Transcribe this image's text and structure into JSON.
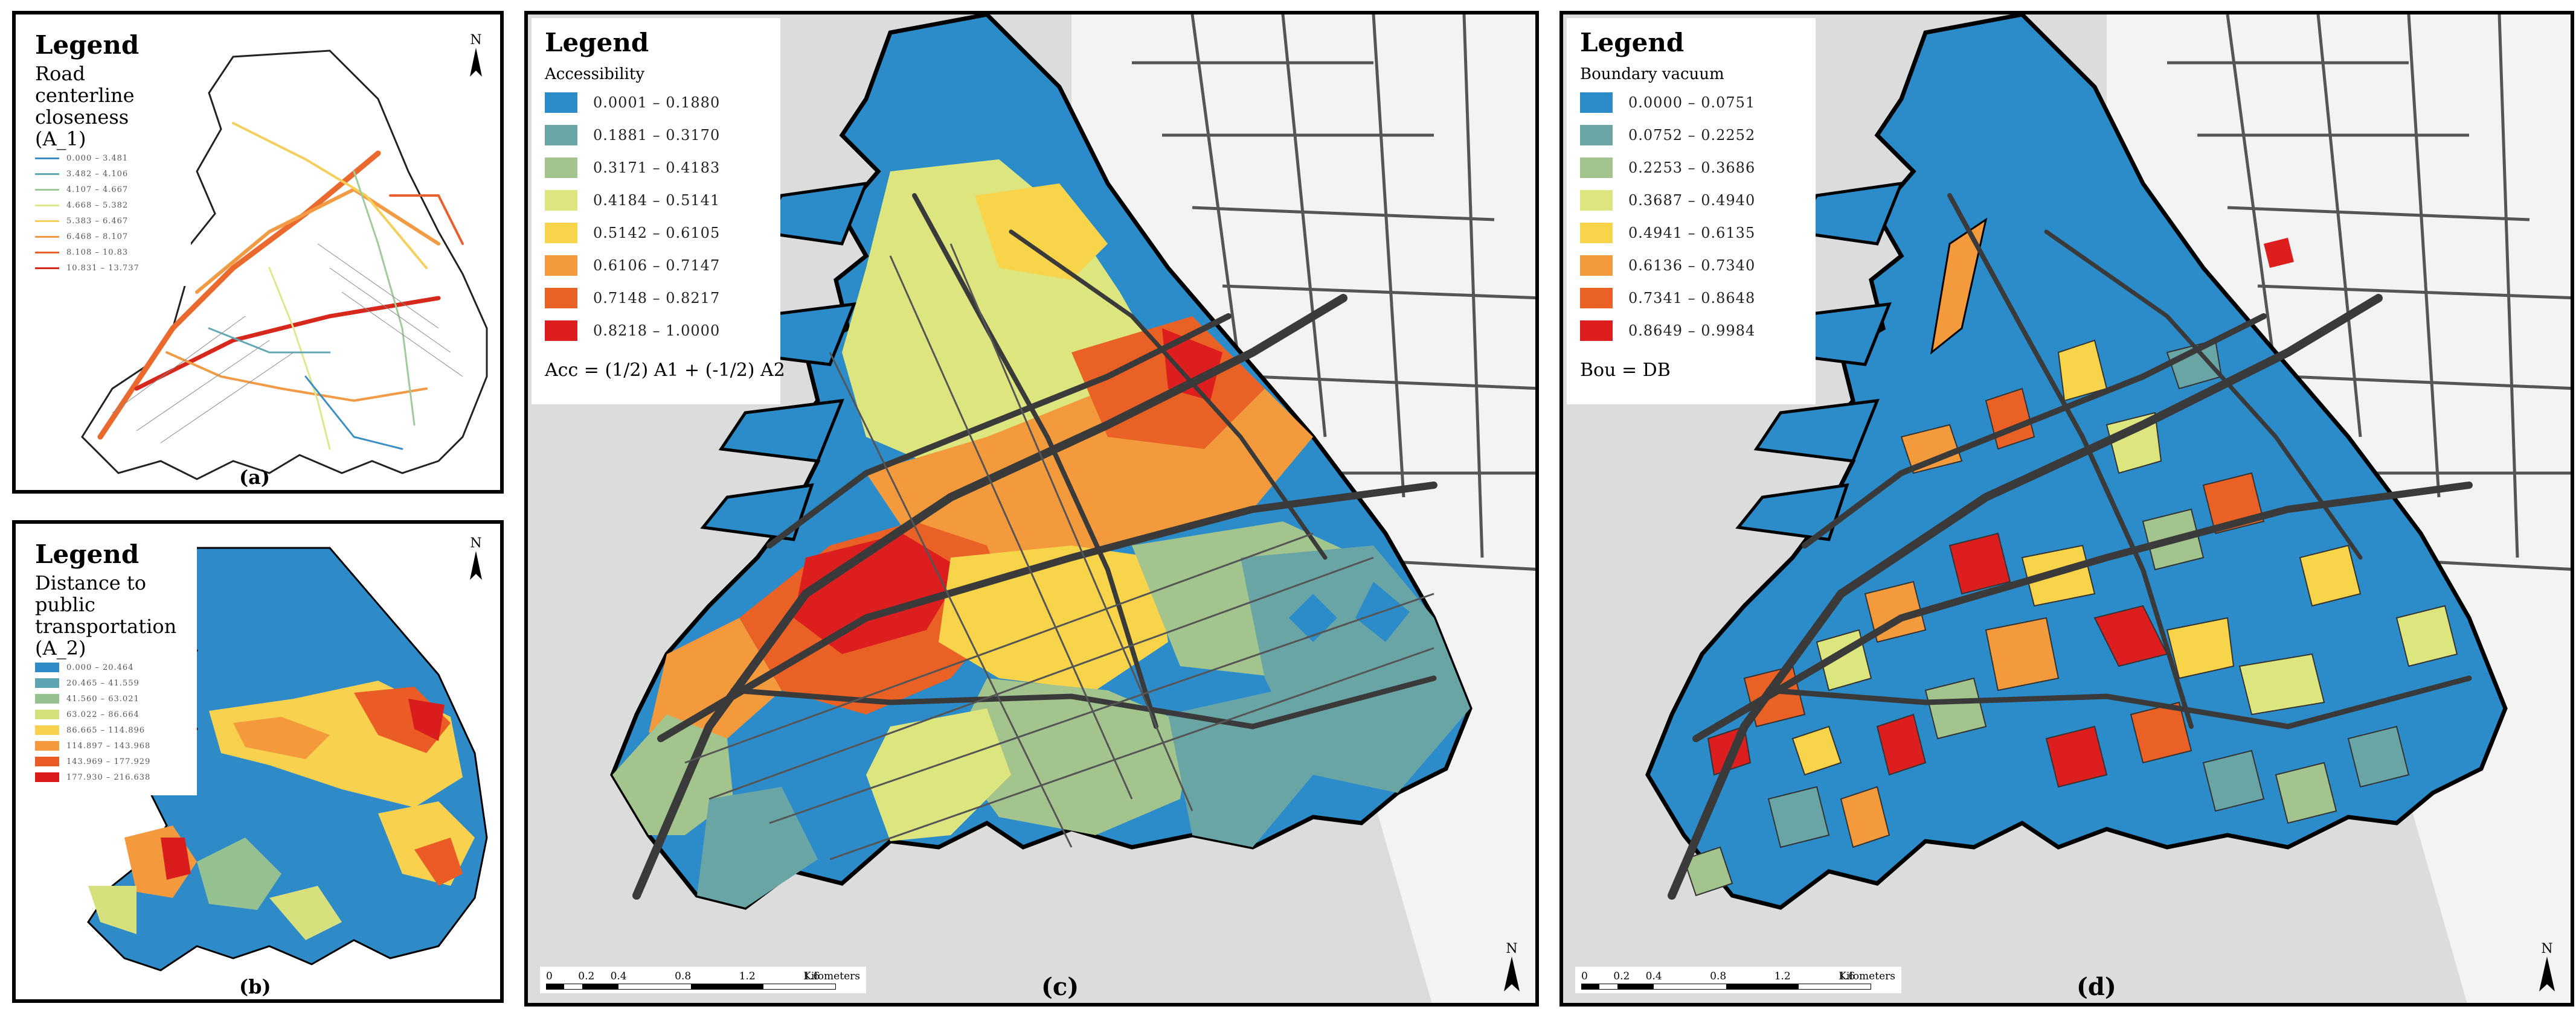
{
  "panels": {
    "a": {
      "label": "(a)",
      "legend_title": "Legend",
      "subtitle": "Road centerline closeness (A_1)",
      "classes": [
        "0.000 – 3.481",
        "3.482 – 4.106",
        "4.107 – 4.667",
        "4.668 – 5.382",
        "5.383 – 6.467",
        "6.468 – 8.107",
        "8.108 – 10.83",
        "10.831 – 13.737"
      ],
      "colors": [
        "#3b8fc4",
        "#62a9b8",
        "#9fcb9b",
        "#e0e68a",
        "#f4cf5a",
        "#f19c44",
        "#e8602e",
        "#d7281c"
      ],
      "north": "N"
    },
    "b": {
      "label": "(b)",
      "legend_title": "Legend",
      "subtitle": "Distance to public transportation (A_2)",
      "classes": [
        "0.000 – 20.464",
        "20.465 – 41.559",
        "41.560 – 63.021",
        "63.022 – 86.664",
        "86.665 – 114.896",
        "114.897 – 143.968",
        "143.969 – 177.929",
        "177.930 – 216.638"
      ],
      "colors": [
        "#2f8ac8",
        "#5ea3b3",
        "#95c08f",
        "#d6e07c",
        "#f8d24f",
        "#f49a3c",
        "#ea5b26",
        "#d91d1d"
      ],
      "north": "N"
    },
    "c": {
      "label": "(c)",
      "legend_title": "Legend",
      "subtitle": "Accessibility",
      "classes": [
        "0.0001 – 0.1880",
        "0.1881 – 0.3170",
        "0.3171 – 0.4183",
        "0.4184 – 0.5141",
        "0.5142 – 0.6105",
        "0.6106 – 0.7147",
        "0.7148 – 0.8217",
        "0.8218 – 1.0000"
      ],
      "colors": [
        "#2b8cc9",
        "#6aa5a6",
        "#a3c48d",
        "#dde57e",
        "#f8d44a",
        "#f39a3c",
        "#ea6125",
        "#dd1e1e"
      ],
      "formula": "Acc = (1/2) A1 + (-1/2) A2",
      "scale_ticks": [
        "0",
        "0.2",
        "0.4",
        "0.8",
        "1.2",
        "1.6"
      ],
      "scale_unit": "Kilometers",
      "north": "N"
    },
    "d": {
      "label": "(d)",
      "legend_title": "Legend",
      "subtitle": "Boundary vacuum",
      "classes": [
        "0.0000 – 0.0751",
        "0.0752 – 0.2252",
        "0.2253 – 0.3686",
        "0.3687 – 0.4940",
        "0.4941 – 0.6135",
        "0.6136 – 0.7340",
        "0.7341 – 0.8648",
        "0.8649 – 0.9984"
      ],
      "colors": [
        "#2b8cc9",
        "#6aa5a6",
        "#a3c48d",
        "#dde57e",
        "#f8d44a",
        "#f39a3c",
        "#ea6125",
        "#dd1e1e"
      ],
      "formula": "Bou = DB",
      "scale_ticks": [
        "0",
        "0.2",
        "0.4",
        "0.8",
        "1.2",
        "1.6"
      ],
      "scale_unit": "Kilometers",
      "north": "N"
    }
  },
  "style": {
    "sea_gray": "#dcdcdc",
    "road_dark": "#3a3a3a",
    "outline": "#000000"
  }
}
